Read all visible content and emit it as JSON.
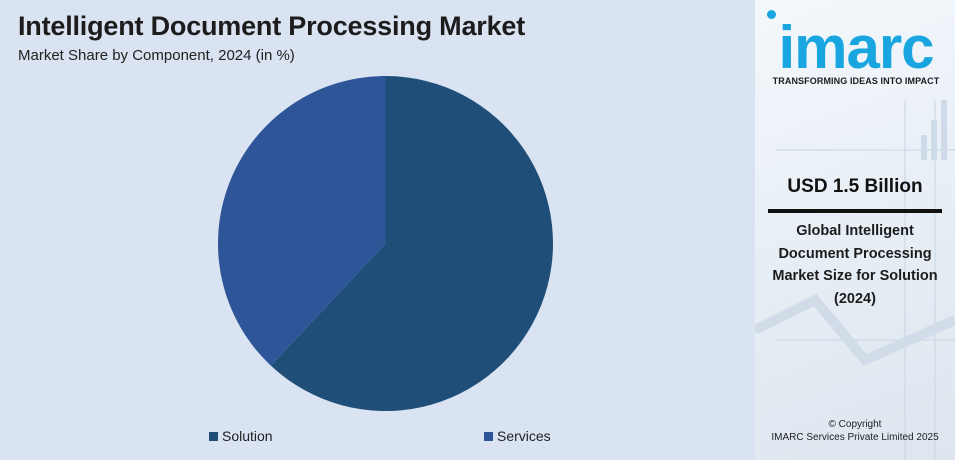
{
  "header": {
    "title": "Intelligent Document Processing Market",
    "subtitle": "Market Share by Component, 2024 (in %)"
  },
  "chart_data": {
    "type": "pie",
    "categories": [
      "Solution",
      "Services"
    ],
    "values": [
      62,
      38
    ],
    "colors": [
      "#1f4e79",
      "#2e5597"
    ],
    "start_angle_deg": 0,
    "direction": "clockwise",
    "legend": "bottom"
  },
  "side_panel": {
    "logo_text": "imarc",
    "tagline": "TRANSFORMING IDEAS INTO IMPACT",
    "value": "USD 1.5 Billion",
    "description": "Global Intelligent Document Processing Market Size for Solution (2024)",
    "copyright_line1": "© Copyright",
    "copyright_line2": "IMARC Services Private Limited 2025",
    "logo_color": "#19a6e0"
  }
}
